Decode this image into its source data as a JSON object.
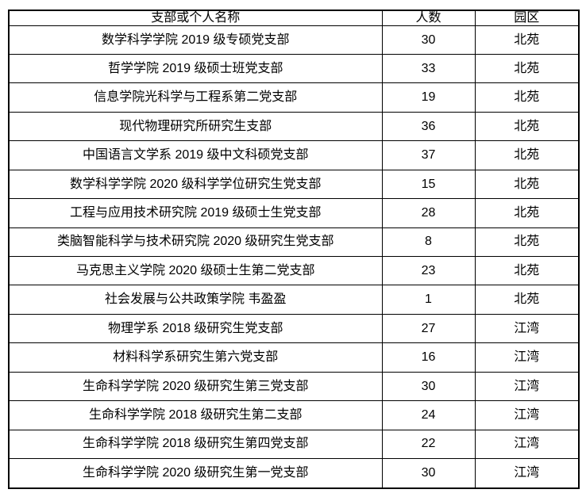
{
  "table": {
    "headers": [
      "支部或个人名称",
      "人数",
      "园区"
    ],
    "rows": [
      {
        "name": "数学科学学院 2019 级专硕党支部",
        "count": "30",
        "campus": "北苑"
      },
      {
        "name": "哲学学院 2019 级硕士班党支部",
        "count": "33",
        "campus": "北苑"
      },
      {
        "name": "信息学院光科学与工程系第二党支部",
        "count": "19",
        "campus": "北苑"
      },
      {
        "name": "现代物理研究所研究生支部",
        "count": "36",
        "campus": "北苑"
      },
      {
        "name": "中国语言文学系 2019 级中文科硕党支部",
        "count": "37",
        "campus": "北苑"
      },
      {
        "name": "数学科学学院 2020 级科学学位研究生党支部",
        "count": "15",
        "campus": "北苑"
      },
      {
        "name": "工程与应用技术研究院 2019 级硕士生党支部",
        "count": "28",
        "campus": "北苑"
      },
      {
        "name": "类脑智能科学与技术研究院 2020 级研究生党支部",
        "count": "8",
        "campus": "北苑"
      },
      {
        "name": "马克思主义学院 2020 级硕士生第二党支部",
        "count": "23",
        "campus": "北苑"
      },
      {
        "name": "社会发展与公共政策学院 韦盈盈",
        "count": "1",
        "campus": "北苑"
      },
      {
        "name": "物理学系 2018 级研究生党支部",
        "count": "27",
        "campus": "江湾"
      },
      {
        "name": "材料科学系研究生第六党支部",
        "count": "16",
        "campus": "江湾"
      },
      {
        "name": "生命科学学院 2020 级研究生第三党支部",
        "count": "30",
        "campus": "江湾"
      },
      {
        "name": "生命科学学院 2018 级研究生第二支部",
        "count": "24",
        "campus": "江湾"
      },
      {
        "name": "生命科学学院 2018 级研究生第四党支部",
        "count": "22",
        "campus": "江湾"
      },
      {
        "name": "生命科学学院 2020 级研究生第一党支部",
        "count": "30",
        "campus": "江湾"
      }
    ]
  }
}
